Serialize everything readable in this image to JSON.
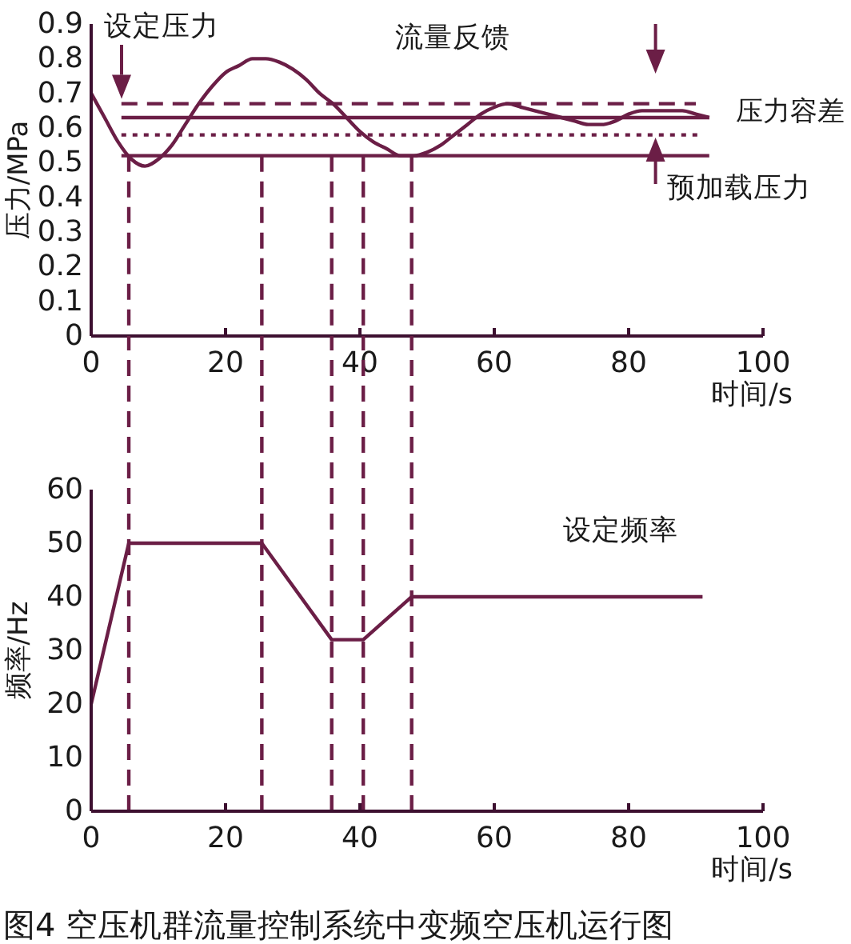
{
  "chart_data": [
    {
      "type": "line",
      "xlim": [
        0,
        100
      ],
      "xticks": [
        0,
        20,
        40,
        60,
        80,
        100
      ],
      "ylim": [
        0,
        0.9
      ],
      "yticks": [
        0,
        0.1,
        0.2,
        0.3,
        0.4,
        0.5,
        0.6,
        0.7,
        0.8,
        0.9
      ],
      "xlabel": "时间/s",
      "ylabel": "压力/MPa",
      "series": [
        {
          "color": "#6b1e46",
          "line_style": "solid",
          "x": [
            0,
            2,
            4,
            6,
            8,
            10,
            12,
            14,
            16,
            18,
            20,
            22,
            24,
            26,
            28,
            30,
            32,
            34,
            36,
            38,
            40,
            42,
            44,
            46,
            48,
            50,
            52,
            54,
            56,
            58,
            60,
            62,
            64,
            66,
            68,
            70,
            72,
            74,
            76,
            78,
            80,
            82,
            84,
            86,
            88,
            90,
            92
          ],
          "values": [
            0.7,
            0.63,
            0.56,
            0.51,
            0.49,
            0.51,
            0.55,
            0.61,
            0.67,
            0.72,
            0.76,
            0.78,
            0.8,
            0.8,
            0.79,
            0.77,
            0.74,
            0.7,
            0.67,
            0.63,
            0.59,
            0.56,
            0.54,
            0.52,
            0.52,
            0.53,
            0.55,
            0.58,
            0.61,
            0.64,
            0.66,
            0.67,
            0.66,
            0.65,
            0.64,
            0.63,
            0.62,
            0.61,
            0.61,
            0.62,
            0.64,
            0.65,
            0.65,
            0.65,
            0.65,
            0.64,
            0.63
          ]
        },
        {
          "color": "#6b1e46",
          "line_style": "dashed",
          "x": [
            4.5,
            90
          ],
          "values": [
            0.67,
            0.67
          ]
        },
        {
          "color": "#6b1e46",
          "line_style": "solid",
          "x": [
            4.5,
            92
          ],
          "values": [
            0.63,
            0.63
          ]
        },
        {
          "color": "#6b1e46",
          "line_style": "dotted",
          "x": [
            4.5,
            91
          ],
          "values": [
            0.58,
            0.58
          ]
        },
        {
          "color": "#6b1e46",
          "line_style": "solid",
          "x": [
            4.5,
            92
          ],
          "values": [
            0.52,
            0.52
          ]
        },
        {
          "color": "#6b1e46",
          "line_style": "dashed",
          "x": [
            5.6,
            5.6
          ],
          "values": [
            0.52,
            0
          ]
        },
        {
          "color": "#6b1e46",
          "line_style": "dashed",
          "x": [
            25.4,
            25.4
          ],
          "values": [
            0.52,
            0
          ]
        },
        {
          "color": "#6b1e46",
          "line_style": "dashed",
          "x": [
            35.8,
            35.8
          ],
          "values": [
            0.52,
            0
          ]
        },
        {
          "color": "#6b1e46",
          "line_style": "dashed",
          "x": [
            40.5,
            40.5
          ],
          "values": [
            0.52,
            0
          ]
        },
        {
          "color": "#6b1e46",
          "line_style": "dashed",
          "x": [
            47.7,
            47.7
          ],
          "values": [
            0.52,
            0
          ]
        }
      ],
      "annotations": [
        "设定压力",
        "流量反馈",
        "压力容差",
        "预加载压力"
      ]
    },
    {
      "type": "line",
      "xlim": [
        0,
        100
      ],
      "xticks": [
        0,
        20,
        40,
        60,
        80,
        100
      ],
      "ylim": [
        0,
        60
      ],
      "yticks": [
        0,
        10,
        20,
        30,
        40,
        50,
        60
      ],
      "xlabel": "时间/s",
      "ylabel": "频率/Hz",
      "series": [
        {
          "color": "#6b1e46",
          "line_style": "solid",
          "x": [
            0,
            5.6,
            25.4,
            35.8,
            40.5,
            47.7,
            91
          ],
          "values": [
            20,
            50,
            50,
            32,
            32,
            40,
            40
          ]
        }
      ],
      "ref_lines": [
        {
          "axis": "x",
          "value": 5.6,
          "color": "#6b1e46",
          "line_style": "dashed"
        },
        {
          "axis": "x",
          "value": 25.4,
          "color": "#6b1e46",
          "line_style": "dashed"
        },
        {
          "axis": "x",
          "value": 35.8,
          "color": "#6b1e46",
          "line_style": "dashed"
        },
        {
          "axis": "x",
          "value": 40.5,
          "color": "#6b1e46",
          "line_style": "dashed"
        },
        {
          "axis": "x",
          "value": 47.7,
          "color": "#6b1e46",
          "line_style": "dashed"
        }
      ],
      "annotations": [
        "设定频率",
        "图4 空压机群流量控制系统中变频空压机运行图"
      ]
    }
  ]
}
